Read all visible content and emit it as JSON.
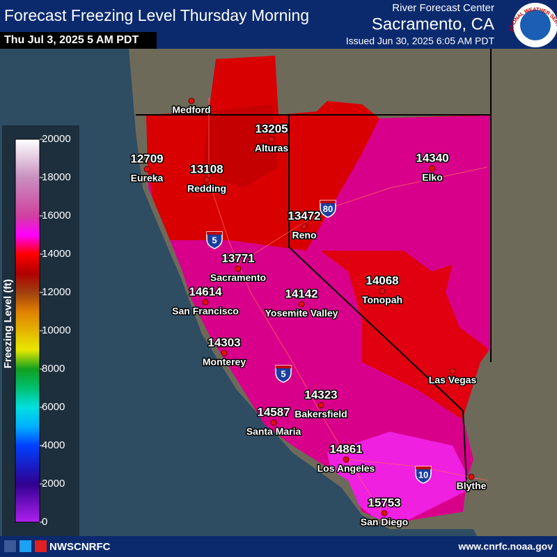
{
  "header": {
    "title": "Forecast Freezing Level Thursday Morning",
    "valid": "Thu Jul 3, 2025 5 AM PDT",
    "agency": "River Forecast Center",
    "office": "Sacramento, CA",
    "issued": "Issued Jun 30, 2025 6:05 AM PDT",
    "logo_text": "NATIONAL WEATHER SERVICE"
  },
  "legend": {
    "title": "Freezing Level (ft)",
    "ticks": [
      0,
      2000,
      4000,
      6000,
      8000,
      10000,
      12000,
      14000,
      16000,
      18000,
      20000
    ],
    "range": [
      0,
      20000
    ]
  },
  "cities": [
    {
      "name": "Medford"
    },
    {
      "name": "Eureka",
      "value": 12709
    },
    {
      "name": "Redding",
      "value": 13108
    },
    {
      "name": "Alturas",
      "value": 13205
    },
    {
      "name": "Reno",
      "value": 13472
    },
    {
      "name": "Elko",
      "value": 14340
    },
    {
      "name": "Sacramento",
      "value": 13771
    },
    {
      "name": "San Francisco",
      "value": 14614
    },
    {
      "name": "Yosemite Valley",
      "value": 14142
    },
    {
      "name": "Tonopah",
      "value": 14068
    },
    {
      "name": "Monterey",
      "value": 14303
    },
    {
      "name": "Bakersfield",
      "value": 14323
    },
    {
      "name": "Santa Maria",
      "value": 14587
    },
    {
      "name": "Los Angeles",
      "value": 14861
    },
    {
      "name": "San Diego",
      "value": 15753
    },
    {
      "name": "Las Vegas"
    },
    {
      "name": "Blythe"
    }
  ],
  "interstates": [
    "5",
    "5",
    "80",
    "10"
  ],
  "footer": {
    "handle": "NWSCNRFC",
    "url": "www.cnrfc.noaa.gov"
  }
}
